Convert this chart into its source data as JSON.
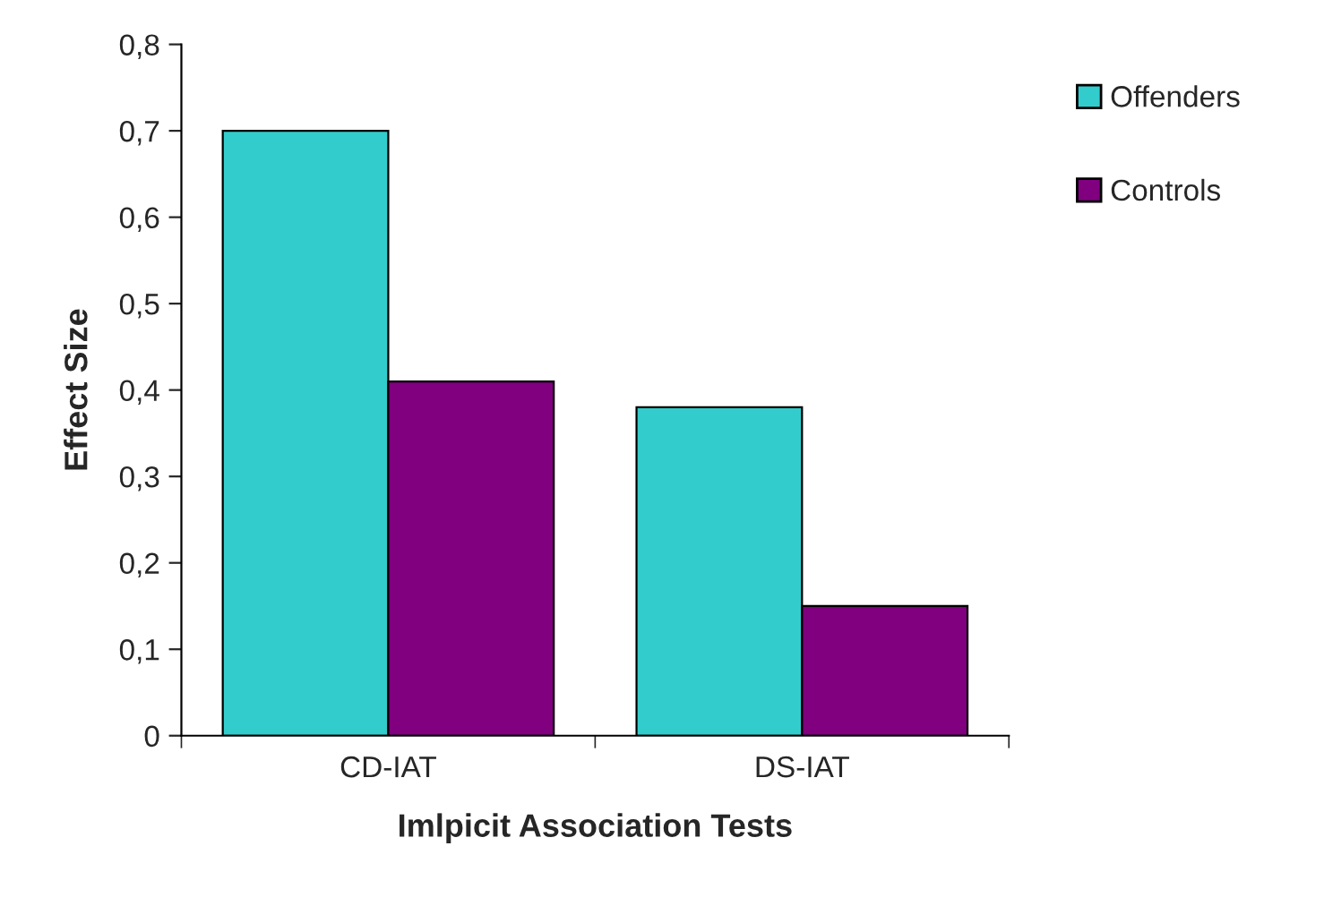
{
  "chart_data": {
    "type": "bar",
    "xlabel": "Imlpicit Association Tests",
    "ylabel": "Effect Size",
    "categories": [
      "CD-IAT",
      "DS-IAT"
    ],
    "series": [
      {
        "name": "Offenders",
        "color": "#33cccc",
        "values": [
          0.7,
          0.38
        ]
      },
      {
        "name": "Controls",
        "color": "#800080",
        "values": [
          0.41,
          0.15
        ]
      }
    ],
    "ylim": [
      0,
      0.8
    ],
    "yticks": [
      0,
      {
        "value": 0.1,
        "label": "0,1"
      },
      {
        "value": 0.2,
        "label": "0,2"
      },
      {
        "value": 0.3,
        "label": "0,3"
      },
      {
        "value": 0.4,
        "label": "0,4"
      },
      {
        "value": 0.5,
        "label": "0,5"
      },
      {
        "value": 0.6,
        "label": "0,6"
      },
      {
        "value": 0.7,
        "label": "0,7"
      },
      {
        "value": 0.8,
        "label": "0,8"
      }
    ],
    "legend": "right",
    "grid": false
  }
}
